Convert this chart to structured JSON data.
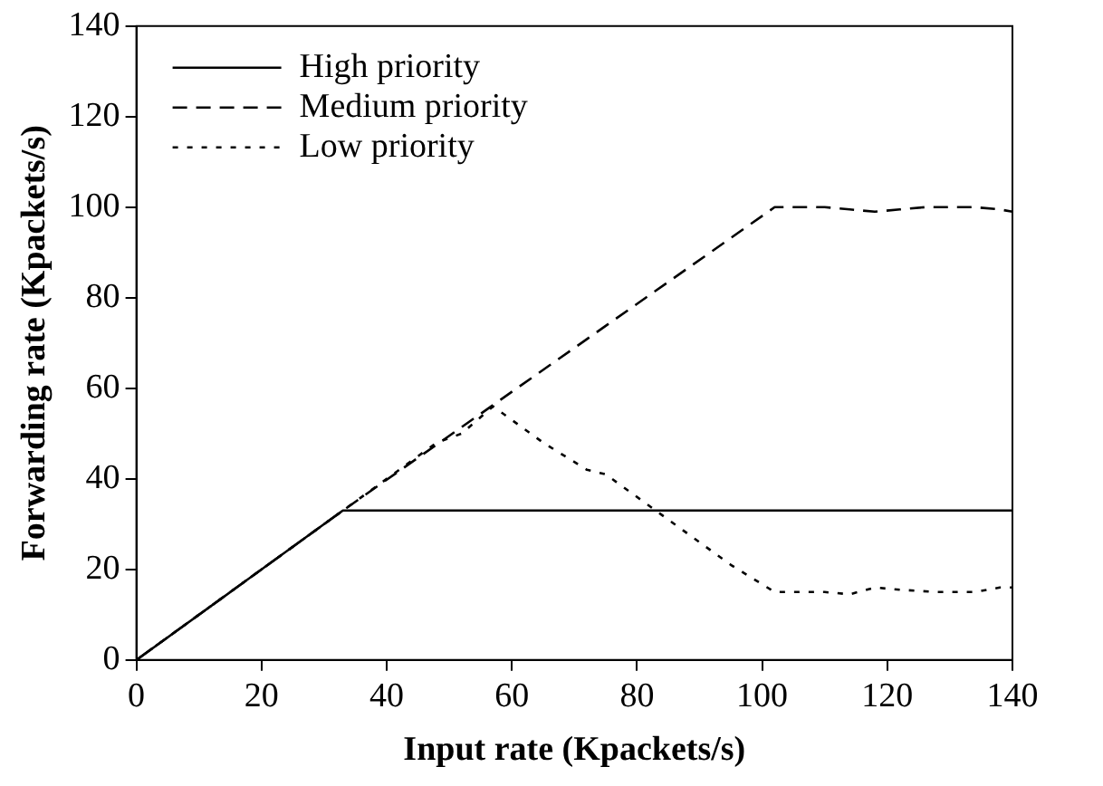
{
  "chart_data": {
    "type": "line",
    "xlabel": "Input rate (Kpackets/s)",
    "ylabel": "Forwarding rate (Kpackets/s)",
    "xlim": [
      0,
      140
    ],
    "xticks": [
      0,
      20,
      40,
      60,
      80,
      100,
      120,
      140
    ],
    "ylim": [
      0,
      140
    ],
    "yticks": [
      0,
      20,
      40,
      60,
      80,
      100,
      120,
      140
    ],
    "grid": false,
    "legend": "top left",
    "marker": "none",
    "series": [
      {
        "name": "High priority",
        "color": "#000000",
        "line_style": "solid",
        "x": [
          0,
          33,
          140
        ],
        "values": [
          0,
          33,
          33
        ]
      },
      {
        "name": "Medium priority",
        "color": "#000000",
        "line_style": "dashed",
        "x": [
          0,
          33,
          102,
          110,
          114,
          118,
          122,
          126,
          134,
          138,
          140
        ],
        "values": [
          0,
          33,
          100,
          100,
          99.5,
          99,
          99.5,
          100,
          100,
          99.5,
          99
        ]
      },
      {
        "name": "Low priority",
        "color": "#000000",
        "line_style": "dotted",
        "x": [
          0,
          33,
          48,
          52,
          57,
          65,
          72,
          75,
          85,
          95,
          102,
          110,
          114,
          118,
          122,
          128,
          134,
          138,
          140
        ],
        "values": [
          0,
          33,
          48,
          50,
          56,
          48,
          42,
          41,
          31,
          21,
          15,
          15,
          14.5,
          16,
          15.5,
          15,
          15,
          16,
          16
        ]
      }
    ]
  }
}
